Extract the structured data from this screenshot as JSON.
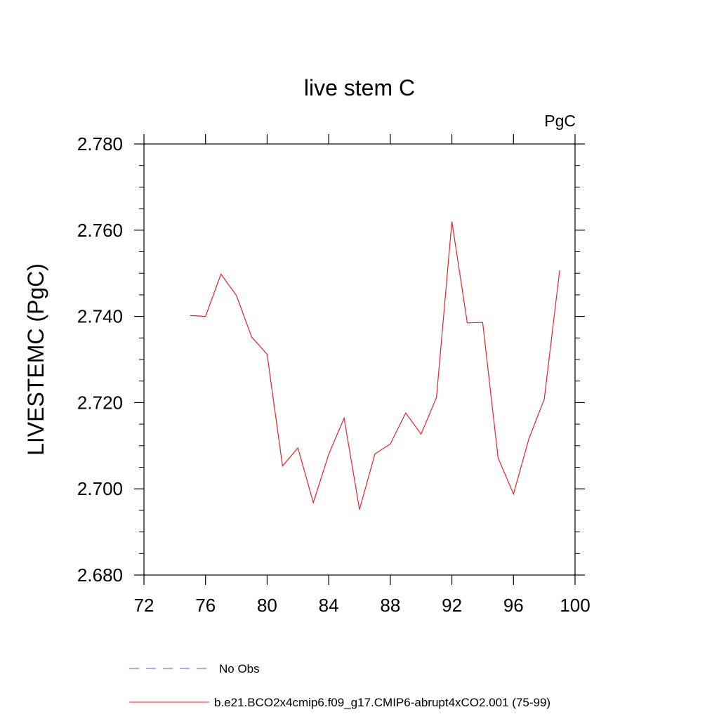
{
  "chart_data": {
    "type": "line",
    "title": "live stem C",
    "units_label": "PgC",
    "xlabel": "",
    "ylabel": "LIVESTEMC  (PgC)",
    "xlim": [
      72,
      100
    ],
    "ylim": [
      2.68,
      2.78
    ],
    "x_ticks": [
      "72",
      "76",
      "80",
      "84",
      "88",
      "92",
      "96",
      "100"
    ],
    "y_ticks": [
      "2.680",
      "2.700",
      "2.720",
      "2.740",
      "2.760",
      "2.780"
    ],
    "grid": false,
    "legend_position": "bottom",
    "series": [
      {
        "name": "No Obs",
        "color": "#5a5adc",
        "style": "dashed",
        "x": [],
        "values": []
      },
      {
        "name": "b.e21.BCO2x4cmip6.f09_g17.CMIP6-abrupt4xCO2.001 (75-99)",
        "color": "#e8202a",
        "style": "solid",
        "x": [
          75,
          76,
          77,
          78,
          79,
          80,
          81,
          82,
          83,
          84,
          85,
          86,
          87,
          88,
          89,
          90,
          91,
          92,
          93,
          94,
          95,
          96,
          97,
          98,
          99
        ],
        "values": [
          2.7402,
          2.74,
          2.7498,
          2.7449,
          2.7352,
          2.7312,
          2.7053,
          2.7095,
          2.6968,
          2.708,
          2.7164,
          2.6952,
          2.7081,
          2.7104,
          2.7176,
          2.7127,
          2.7212,
          2.762,
          2.7385,
          2.7386,
          2.7072,
          2.6988,
          2.7116,
          2.7208,
          2.7507
        ]
      }
    ]
  }
}
